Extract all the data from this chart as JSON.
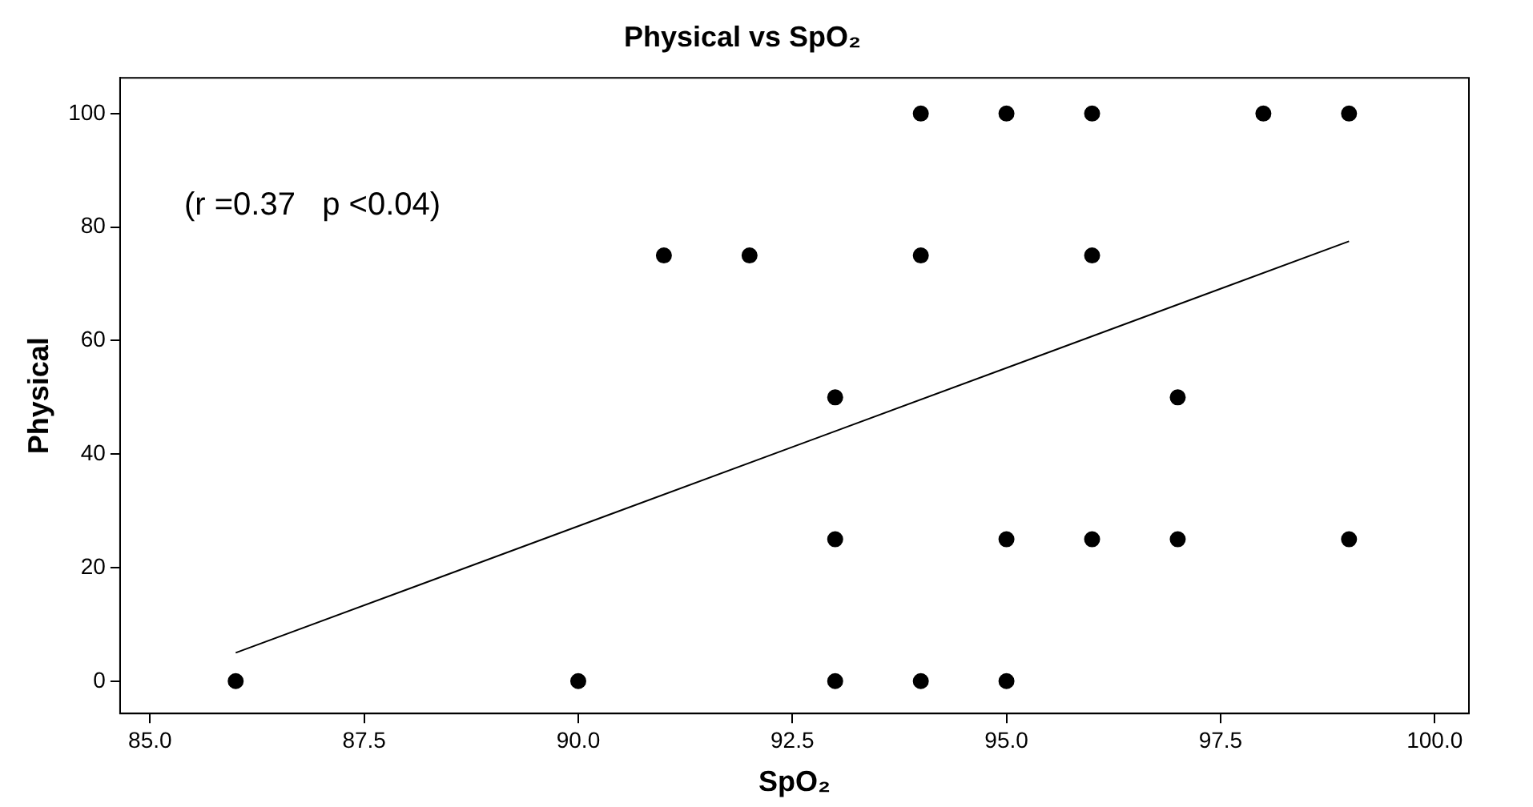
{
  "chart_data": {
    "type": "scatter",
    "title": "Physical vs SpO₂",
    "xlabel": "SpO₂",
    "ylabel": "Physical",
    "xlim": [
      84.65,
      100.4
    ],
    "ylim": [
      -5.7,
      106.3
    ],
    "xticks": [
      {
        "value": 85,
        "label": "85.0"
      },
      {
        "value": 87.5,
        "label": "87.5"
      },
      {
        "value": 90,
        "label": "90.0"
      },
      {
        "value": 92.5,
        "label": "92.5"
      },
      {
        "value": 95,
        "label": "95.0"
      },
      {
        "value": 97.5,
        "label": "97.5"
      },
      {
        "value": 100,
        "label": "100.0"
      }
    ],
    "yticks": [
      0,
      20,
      40,
      60,
      80,
      100
    ],
    "grid": false,
    "legend": false,
    "marker": "circle",
    "annotations": [
      "(r =0.37   p <0.04)"
    ],
    "series": [
      {
        "color": "#000000",
        "x": [
          86,
          90,
          93,
          94,
          95,
          93,
          95,
          96,
          97,
          99,
          93,
          97,
          91,
          92,
          94,
          96,
          94,
          95,
          96,
          98,
          99
        ],
        "values": [
          0,
          0,
          0,
          0,
          0,
          25,
          25,
          25,
          25,
          25,
          50,
          50,
          75,
          75,
          75,
          75,
          100,
          100,
          100,
          100,
          100
        ]
      },
      {
        "type": "line",
        "color": "#000000",
        "marker": "none",
        "x": [
          86,
          99
        ],
        "values": [
          5,
          77.5
        ]
      }
    ]
  }
}
